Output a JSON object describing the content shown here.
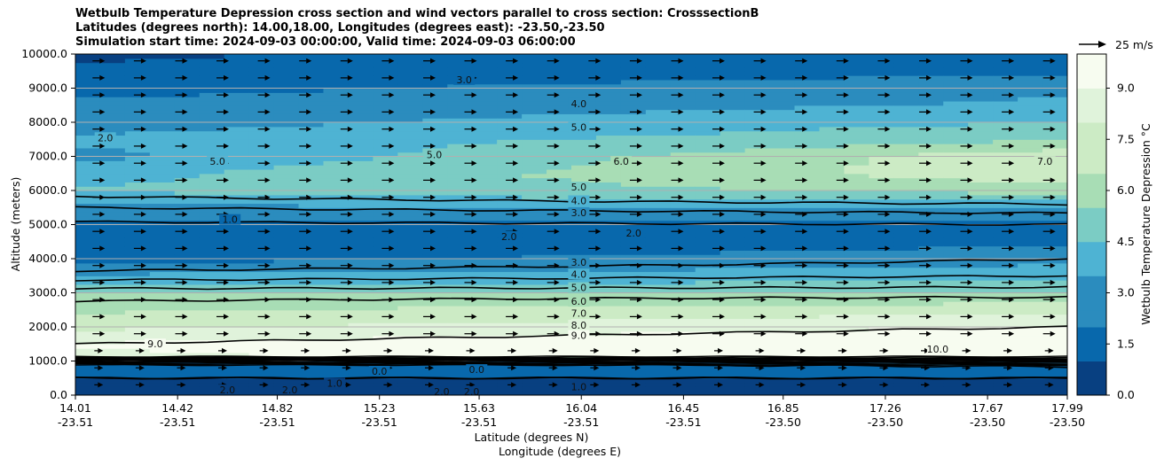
{
  "title": {
    "line1": "Wetbulb Temperature Depression cross section and wind vectors parallel to cross section: CrosssectionB",
    "line2": "Latitudes (degrees north): 14.00,18.00, Longitudes (degrees east): -23.50,-23.50",
    "line3": "Simulation start time: 2024-09-03 00:00:00, Valid time: 2024-09-03 06:00:00"
  },
  "chart_data": {
    "type": "heatmap",
    "ylabel": "Altitude (meters)",
    "xlabel_line1": "Latitude (degrees N)",
    "xlabel_line2": "Longitude (degrees E)",
    "ylim": [
      0,
      10000
    ],
    "y_ticks": [
      "0.0",
      "1000.0",
      "2000.0",
      "3000.0",
      "4000.0",
      "5000.0",
      "6000.0",
      "7000.0",
      "8000.0",
      "9000.0",
      "10000.0"
    ],
    "x_ticks": [
      {
        "lat": "14.01",
        "lon": "-23.51"
      },
      {
        "lat": "14.42",
        "lon": "-23.51"
      },
      {
        "lat": "14.82",
        "lon": "-23.51"
      },
      {
        "lat": "15.23",
        "lon": "-23.51"
      },
      {
        "lat": "15.63",
        "lon": "-23.51"
      },
      {
        "lat": "16.04",
        "lon": "-23.51"
      },
      {
        "lat": "16.45",
        "lon": "-23.51"
      },
      {
        "lat": "16.85",
        "lon": "-23.50"
      },
      {
        "lat": "17.26",
        "lon": "-23.50"
      },
      {
        "lat": "17.67",
        "lon": "-23.50"
      },
      {
        "lat": "17.99",
        "lon": "-23.50"
      }
    ],
    "colorbar": {
      "label": "Wetbulb Temperature Depression °C",
      "range": [
        0,
        10
      ],
      "ticks": [
        "0.0",
        "1.5",
        "3.0",
        "4.5",
        "6.0",
        "7.5",
        "9.0"
      ],
      "colors": [
        "#084081",
        "#0868ac",
        "#2b8cbe",
        "#4eb3d3",
        "#7bccc4",
        "#a8ddb5",
        "#ccebc5",
        "#e0f3db",
        "#f7fcf0"
      ]
    },
    "quiver_key": "25 m/s",
    "grid": "horizontal",
    "profile_altitudes": [
      0,
      500,
      1000,
      1100,
      1500,
      2000,
      2500,
      3000,
      3500,
      4000,
      4500,
      5000,
      5500,
      6000,
      6500,
      7000,
      7500,
      8000,
      8500,
      9000,
      9500,
      10000
    ],
    "profile_left": [
      0.8,
      1.0,
      2.0,
      8.5,
      9.0,
      7.5,
      6.5,
      5.5,
      3.5,
      1.8,
      1.0,
      1.8,
      3.0,
      4.5,
      4.0,
      3.0,
      3.5,
      2.8,
      2.5,
      1.8,
      1.2,
      1.0
    ],
    "profile_right": [
      0.8,
      1.0,
      2.5,
      10.0,
      10.5,
      9.0,
      7.5,
      5.5,
      4.0,
      3.0,
      2.0,
      2.0,
      3.5,
      6.0,
      7.5,
      7.5,
      5.5,
      4.5,
      3.5,
      3.2,
      2.0,
      1.5
    ],
    "contour_labels": [
      {
        "text": "3.0",
        "lat": 15.57,
        "alt": 9200
      },
      {
        "text": "4.0",
        "lat": 16.03,
        "alt": 8500
      },
      {
        "text": "5.0",
        "lat": 16.03,
        "alt": 7800
      },
      {
        "text": "2.0",
        "lat": 14.13,
        "alt": 7500
      },
      {
        "text": "5.0",
        "lat": 14.58,
        "alt": 6800
      },
      {
        "text": "5.0",
        "lat": 15.45,
        "alt": 7000
      },
      {
        "text": "6.0",
        "lat": 16.2,
        "alt": 6800
      },
      {
        "text": "7.0",
        "lat": 17.9,
        "alt": 6800
      },
      {
        "text": "5.0",
        "lat": 16.03,
        "alt": 6050
      },
      {
        "text": "4.0",
        "lat": 16.03,
        "alt": 5650
      },
      {
        "text": "3.0",
        "lat": 16.03,
        "alt": 5300
      },
      {
        "text": "1.0",
        "lat": 14.63,
        "alt": 5100
      },
      {
        "text": "2.0",
        "lat": 15.75,
        "alt": 4600
      },
      {
        "text": "2.0",
        "lat": 16.25,
        "alt": 4700
      },
      {
        "text": "3.0",
        "lat": 16.03,
        "alt": 3850
      },
      {
        "text": "4.0",
        "lat": 16.03,
        "alt": 3500
      },
      {
        "text": "5.0",
        "lat": 16.03,
        "alt": 3100
      },
      {
        "text": "6.0",
        "lat": 16.03,
        "alt": 2700
      },
      {
        "text": "7.0",
        "lat": 16.03,
        "alt": 2350
      },
      {
        "text": "8.0",
        "lat": 16.03,
        "alt": 2000
      },
      {
        "text": "9.0",
        "lat": 16.03,
        "alt": 1700
      },
      {
        "text": "9.0",
        "lat": 14.33,
        "alt": 1450
      },
      {
        "text": "10.0",
        "lat": 17.47,
        "alt": 1300
      },
      {
        "text": "0.0",
        "lat": 15.62,
        "alt": 700
      },
      {
        "text": "0.0",
        "lat": 15.23,
        "alt": 650
      },
      {
        "text": "1.0",
        "lat": 16.03,
        "alt": 200
      },
      {
        "text": "2.0",
        "lat": 15.48,
        "alt": 50
      },
      {
        "text": "2.0",
        "lat": 15.6,
        "alt": 50
      },
      {
        "text": "2.0",
        "lat": 14.62,
        "alt": 100
      },
      {
        "text": "2.0",
        "lat": 14.87,
        "alt": 100
      },
      {
        "text": "1.0",
        "lat": 15.05,
        "alt": 300
      }
    ]
  }
}
